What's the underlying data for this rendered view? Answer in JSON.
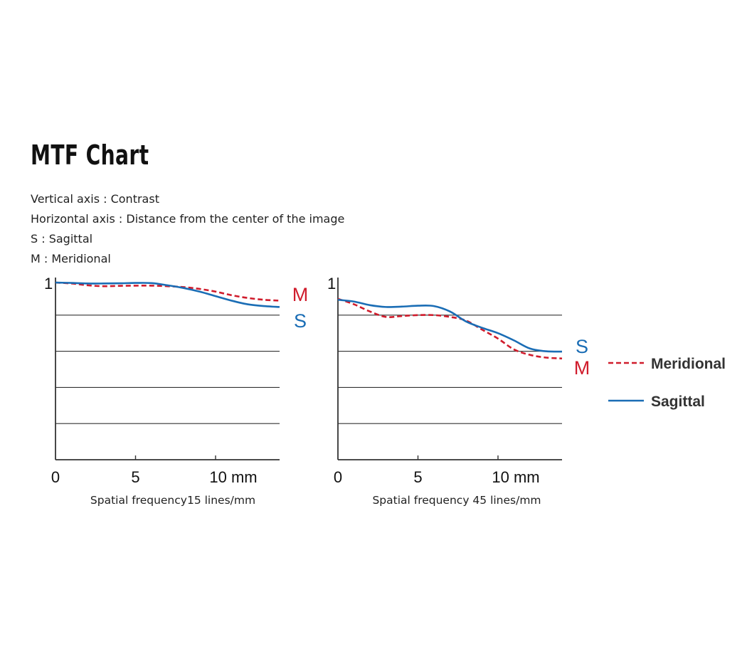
{
  "page": {
    "title": "MTF Chart",
    "description_lines": [
      "Vertical axis : Contrast",
      "Horizontal axis : Distance from the center of the image",
      "S : Sagittal",
      "M : Meridional"
    ]
  },
  "colors": {
    "meridional": "#d01c2c",
    "sagittal": "#1a6db5",
    "axis": "#333333",
    "grid": "#333333",
    "text": "#111111"
  },
  "legend": {
    "items": [
      {
        "label": "Meridional",
        "style": "dashed",
        "color_key": "meridional"
      },
      {
        "label": "Sagittal",
        "style": "solid",
        "color_key": "sagittal"
      }
    ],
    "placement": "right"
  },
  "chart_data": [
    {
      "type": "line",
      "xlabel": "Spatial frequency15 lines/mm",
      "ylabel": "",
      "xlim": [
        0,
        14
      ],
      "ylim": [
        0,
        1
      ],
      "x_ticks": [
        {
          "value": 0,
          "label": "0"
        },
        {
          "value": 5,
          "label": "5"
        },
        {
          "value": 10,
          "label": "10 mm"
        }
      ],
      "y_tick_label": "1",
      "grid_y": [
        0.2,
        0.4,
        0.6,
        0.8
      ],
      "end_labels": [
        {
          "text": "M",
          "color_key": "meridional",
          "order": 1
        },
        {
          "text": "S",
          "color_key": "sagittal",
          "order": 2
        }
      ],
      "series": [
        {
          "name": "M",
          "style": "dashed",
          "color_key": "meridional",
          "x": [
            0,
            1,
            2,
            3,
            4,
            5,
            6,
            7,
            8,
            9,
            10,
            11,
            12,
            13,
            14
          ],
          "y": [
            0.98,
            0.975,
            0.965,
            0.96,
            0.962,
            0.963,
            0.963,
            0.96,
            0.955,
            0.945,
            0.93,
            0.91,
            0.895,
            0.885,
            0.88
          ]
        },
        {
          "name": "S",
          "style": "solid",
          "color_key": "sagittal",
          "x": [
            0,
            1,
            2,
            3,
            4,
            5,
            6,
            7,
            8,
            9,
            10,
            11,
            12,
            13,
            14
          ],
          "y": [
            0.98,
            0.978,
            0.975,
            0.975,
            0.976,
            0.978,
            0.977,
            0.965,
            0.95,
            0.93,
            0.905,
            0.88,
            0.86,
            0.85,
            0.845
          ]
        }
      ]
    },
    {
      "type": "line",
      "xlabel": "Spatial frequency 45 lines/mm",
      "ylabel": "",
      "xlim": [
        0,
        14
      ],
      "ylim": [
        0,
        1
      ],
      "x_ticks": [
        {
          "value": 0,
          "label": "0"
        },
        {
          "value": 5,
          "label": "5"
        },
        {
          "value": 10,
          "label": "10 mm"
        }
      ],
      "y_tick_label": "1",
      "grid_y": [
        0.2,
        0.4,
        0.6,
        0.8
      ],
      "end_labels": [
        {
          "text": "S",
          "color_key": "sagittal",
          "order": 1
        },
        {
          "text": "M",
          "color_key": "meridional",
          "order": 2
        }
      ],
      "series": [
        {
          "name": "M",
          "style": "dashed",
          "color_key": "meridional",
          "x": [
            0,
            1,
            2,
            3,
            4,
            5,
            6,
            7,
            8,
            9,
            10,
            11,
            12,
            13,
            14
          ],
          "y": [
            0.89,
            0.86,
            0.82,
            0.79,
            0.795,
            0.8,
            0.8,
            0.79,
            0.77,
            0.72,
            0.67,
            0.61,
            0.58,
            0.565,
            0.56
          ]
        },
        {
          "name": "S",
          "style": "solid",
          "color_key": "sagittal",
          "x": [
            0,
            1,
            2,
            3,
            4,
            5,
            6,
            7,
            8,
            9,
            10,
            11,
            12,
            13,
            14
          ],
          "y": [
            0.885,
            0.875,
            0.855,
            0.845,
            0.847,
            0.852,
            0.85,
            0.82,
            0.765,
            0.73,
            0.7,
            0.66,
            0.615,
            0.6,
            0.598
          ]
        }
      ]
    }
  ]
}
